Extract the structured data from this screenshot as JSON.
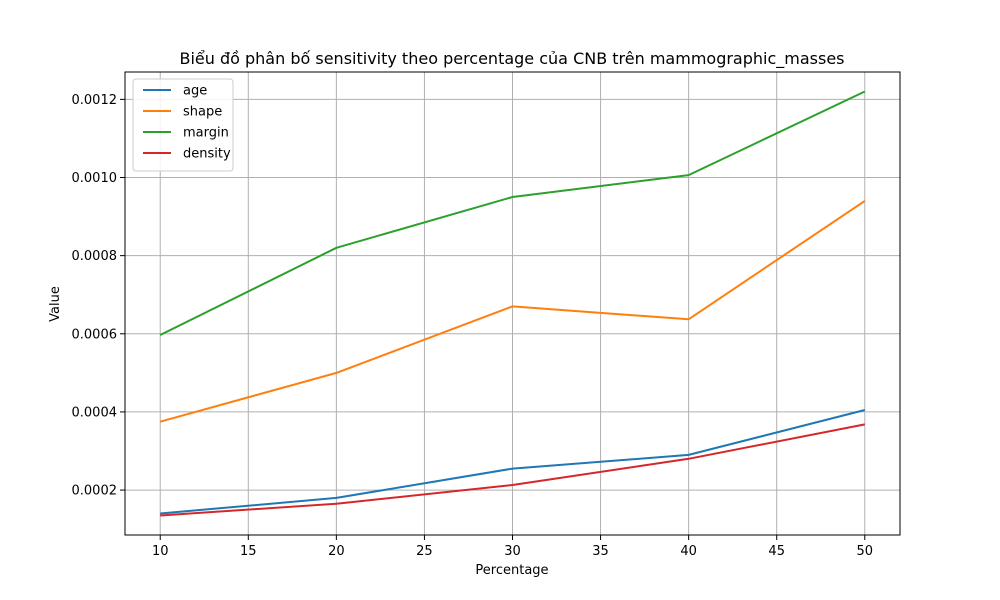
{
  "chart_data": {
    "type": "line",
    "title": "Biểu đồ phân bố sensitivity theo percentage của CNB trên mammographic_masses",
    "xlabel": "Percentage",
    "ylabel": "Value",
    "x": [
      10,
      20,
      30,
      40,
      50
    ],
    "xlim": [
      8,
      52
    ],
    "ylim": [
      8.5e-05,
      0.00127
    ],
    "x_ticks": [
      10,
      15,
      20,
      25,
      30,
      35,
      40,
      45,
      50
    ],
    "y_ticks": [
      0.0002,
      0.0004,
      0.0006,
      0.0008,
      0.001,
      0.0012
    ],
    "y_tick_labels": [
      "0.0002",
      "0.0004",
      "0.0006",
      "0.0008",
      "0.0010",
      "0.0012"
    ],
    "grid": true,
    "legend_position": "top-left",
    "series": [
      {
        "name": "age",
        "color": "#1f77b4",
        "values": [
          0.00014,
          0.00018,
          0.000255,
          0.00029,
          0.000405
        ]
      },
      {
        "name": "shape",
        "color": "#ff7f0e",
        "values": [
          0.000375,
          0.0005,
          0.00067,
          0.000637,
          0.00094
        ]
      },
      {
        "name": "margin",
        "color": "#2ca02c",
        "values": [
          0.000597,
          0.00082,
          0.00095,
          0.001006,
          0.00122
        ]
      },
      {
        "name": "density",
        "color": "#d62728",
        "values": [
          0.000135,
          0.000165,
          0.000213,
          0.00028,
          0.000368
        ]
      }
    ]
  }
}
